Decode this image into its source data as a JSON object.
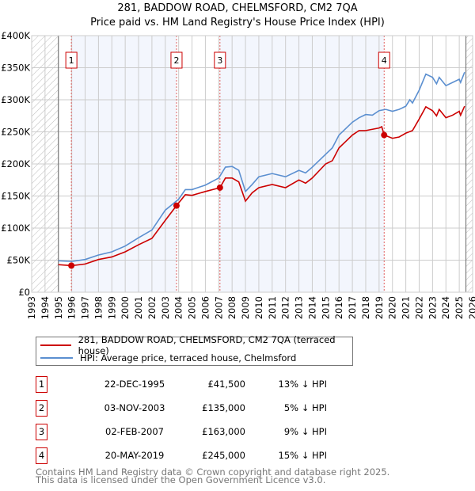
{
  "chart_data": {
    "type": "line",
    "title": "281, BADDOW ROAD, CHELMSFORD, CM2 7QA",
    "subtitle": "Price paid vs. HM Land Registry's House Price Index (HPI)",
    "xlim": [
      1993,
      2026
    ],
    "ylim": [
      0,
      400000
    ],
    "y_ticks": [
      0,
      50000,
      100000,
      150000,
      200000,
      250000,
      300000,
      350000,
      400000
    ],
    "y_tick_labels": [
      "£0",
      "£50K",
      "£100K",
      "£150K",
      "£200K",
      "£250K",
      "£300K",
      "£350K",
      "£400K"
    ],
    "x_ticks": [
      1993,
      1994,
      1995,
      1996,
      1997,
      1998,
      1999,
      2000,
      2001,
      2002,
      2003,
      2004,
      2005,
      2006,
      2007,
      2008,
      2009,
      2010,
      2011,
      2012,
      2013,
      2014,
      2015,
      2016,
      2017,
      2018,
      2019,
      2020,
      2021,
      2022,
      2023,
      2024,
      2025,
      2026
    ],
    "grid": true,
    "data_range": [
      1995,
      2025.5
    ],
    "series": [
      {
        "name": "281, BADDOW ROAD, CHELMSFORD, CM2 7QA (terraced house)",
        "color": "#cc0000",
        "points": [
          [
            1995,
            43000
          ],
          [
            1996,
            41500
          ],
          [
            1997,
            44000
          ],
          [
            1998,
            51000
          ],
          [
            1999,
            55000
          ],
          [
            2000,
            63000
          ],
          [
            2001,
            74000
          ],
          [
            2002,
            84000
          ],
          [
            2003,
            112000
          ],
          [
            2003.84,
            135000
          ],
          [
            2004.5,
            152000
          ],
          [
            2005,
            151000
          ],
          [
            2006,
            157000
          ],
          [
            2007.09,
            163000
          ],
          [
            2007.5,
            178000
          ],
          [
            2008,
            178000
          ],
          [
            2008.5,
            172000
          ],
          [
            2009,
            142000
          ],
          [
            2009.5,
            155000
          ],
          [
            2010,
            163000
          ],
          [
            2011,
            168000
          ],
          [
            2012,
            163000
          ],
          [
            2013,
            175000
          ],
          [
            2013.5,
            170000
          ],
          [
            2014,
            178000
          ],
          [
            2015,
            200000
          ],
          [
            2015.5,
            205000
          ],
          [
            2016,
            225000
          ],
          [
            2016.5,
            235000
          ],
          [
            2017,
            245000
          ],
          [
            2017.5,
            252000
          ],
          [
            2018,
            252000
          ],
          [
            2018.5,
            254000
          ],
          [
            2019,
            256000
          ],
          [
            2019.2,
            258000
          ],
          [
            2019.38,
            245000
          ],
          [
            2020,
            240000
          ],
          [
            2020.5,
            242000
          ],
          [
            2021,
            248000
          ],
          [
            2021.5,
            252000
          ],
          [
            2022,
            270000
          ],
          [
            2022.5,
            289000
          ],
          [
            2023,
            283000
          ],
          [
            2023.3,
            275000
          ],
          [
            2023.5,
            285000
          ],
          [
            2024,
            272000
          ],
          [
            2024.5,
            276000
          ],
          [
            2025,
            282000
          ],
          [
            2025.1,
            276000
          ],
          [
            2025.4,
            290000
          ]
        ]
      },
      {
        "name": "HPI: Average price, terraced house, Chelmsford",
        "color": "#5b8fd0",
        "points": [
          [
            1995,
            49000
          ],
          [
            1996,
            48000
          ],
          [
            1997,
            51000
          ],
          [
            1998,
            58000
          ],
          [
            1999,
            63000
          ],
          [
            2000,
            72000
          ],
          [
            2001,
            85000
          ],
          [
            2002,
            97000
          ],
          [
            2003,
            128000
          ],
          [
            2004,
            145000
          ],
          [
            2004.5,
            160000
          ],
          [
            2005,
            160000
          ],
          [
            2006,
            167000
          ],
          [
            2007,
            178000
          ],
          [
            2007.5,
            195000
          ],
          [
            2008,
            196000
          ],
          [
            2008.5,
            190000
          ],
          [
            2009,
            157000
          ],
          [
            2009.5,
            168000
          ],
          [
            2010,
            180000
          ],
          [
            2011,
            185000
          ],
          [
            2012,
            180000
          ],
          [
            2013,
            190000
          ],
          [
            2013.5,
            186000
          ],
          [
            2014,
            195000
          ],
          [
            2015,
            215000
          ],
          [
            2015.5,
            225000
          ],
          [
            2016,
            245000
          ],
          [
            2016.5,
            255000
          ],
          [
            2017,
            265000
          ],
          [
            2017.5,
            272000
          ],
          [
            2018,
            277000
          ],
          [
            2018.5,
            276000
          ],
          [
            2019,
            283000
          ],
          [
            2019.5,
            285000
          ],
          [
            2020,
            282000
          ],
          [
            2020.5,
            285000
          ],
          [
            2021,
            290000
          ],
          [
            2021.3,
            300000
          ],
          [
            2021.5,
            295000
          ],
          [
            2022,
            315000
          ],
          [
            2022.5,
            340000
          ],
          [
            2023,
            335000
          ],
          [
            2023.3,
            325000
          ],
          [
            2023.5,
            335000
          ],
          [
            2024,
            322000
          ],
          [
            2024.5,
            327000
          ],
          [
            2025,
            332000
          ],
          [
            2025.1,
            327000
          ],
          [
            2025.4,
            343000
          ]
        ]
      }
    ],
    "sales": [
      {
        "label": "1",
        "x": 1995.97,
        "price": 41500
      },
      {
        "label": "2",
        "x": 2003.84,
        "price": 135000
      },
      {
        "label": "3",
        "x": 2007.09,
        "price": 163000
      },
      {
        "label": "4",
        "x": 2019.38,
        "price": 245000
      }
    ]
  },
  "legend": {
    "property": "281, BADDOW ROAD, CHELMSFORD, CM2 7QA (terraced house)",
    "hpi": "HPI: Average price, terraced house, Chelmsford"
  },
  "transactions": [
    {
      "num": "1",
      "date": "22-DEC-1995",
      "price": "£41,500",
      "hpi": "13% ↓ HPI"
    },
    {
      "num": "2",
      "date": "03-NOV-2003",
      "price": "£135,000",
      "hpi": "5% ↓ HPI"
    },
    {
      "num": "3",
      "date": "02-FEB-2007",
      "price": "£163,000",
      "hpi": "9% ↓ HPI"
    },
    {
      "num": "4",
      "date": "20-MAY-2019",
      "price": "£245,000",
      "hpi": "15% ↓ HPI"
    }
  ],
  "footer": {
    "line1": "Contains HM Land Registry data © Crown copyright and database right 2025.",
    "line2": "This data is licensed under the Open Government Licence v3.0."
  }
}
